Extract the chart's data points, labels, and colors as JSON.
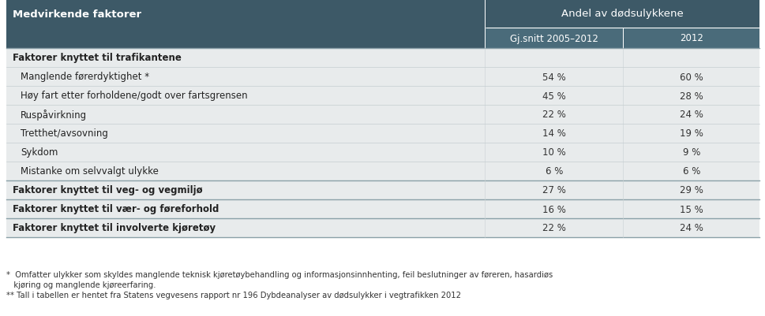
{
  "header_col": "Medvirkende faktorer",
  "header_span": "Andel av dødsulykkene",
  "subheader1": "Gj.snitt 2005–2012",
  "subheader2": "2012",
  "rows": [
    {
      "label": "Faktorer knyttet til trafikantene",
      "bold": true,
      "val1": "",
      "val2": "",
      "indent": false
    },
    {
      "label": "Manglende førerdyktighet *",
      "bold": false,
      "val1": "54 %",
      "val2": "60 %",
      "indent": true
    },
    {
      "label": "Høy fart etter forholdene/godt over fartsgrensen",
      "bold": false,
      "val1": "45 %",
      "val2": "28 %",
      "indent": true
    },
    {
      "label": "Ruspåvirkning",
      "bold": false,
      "val1": "22 %",
      "val2": "24 %",
      "indent": true
    },
    {
      "label": "Tretthet/avsovning",
      "bold": false,
      "val1": "14 %",
      "val2": "19 %",
      "indent": true
    },
    {
      "label": "Sykdom",
      "bold": false,
      "val1": "10 %",
      "val2": "9 %",
      "indent": true
    },
    {
      "label": "Mistanke om selvvalgt ulykke",
      "bold": false,
      "val1": "6 %",
      "val2": "6 %",
      "indent": true
    },
    {
      "label": "Faktorer knyttet til veg- og vegmiljø",
      "bold": true,
      "val1": "27 %",
      "val2": "29 %",
      "indent": false
    },
    {
      "label": "Faktorer knyttet til vær- og føreforhold",
      "bold": true,
      "val1": "16 %",
      "val2": "15 %",
      "indent": false
    },
    {
      "label": "Faktorer knyttet til involverte kjøretøy",
      "bold": true,
      "val1": "22 %",
      "val2": "24 %",
      "indent": false
    }
  ],
  "footnote_lines": [
    "*  Omfatter ulykker som skyldes manglende teknisk kjøretøybehandling og informasjonsinnhenting, feil beslutninger av føreren, hasardiøs",
    "   kjøring og manglende kjøreerfaring.",
    "** Tall i tabellen er hentet fra Statens vegvesens rapport nr 196 Dybdeanalyser av dødsulykker i vegtrafikken 2012"
  ],
  "header_bg": "#3d5967",
  "subheader_bg": "#4a6b7a",
  "header_text_color": "#ffffff",
  "row_bg": "#e8ebec",
  "row_bg_light": "#f0f2f3",
  "border_color_bold": "#8aa0a8",
  "border_color_light": "#c5cdd0"
}
